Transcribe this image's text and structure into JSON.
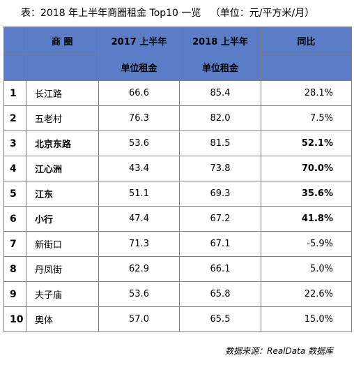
{
  "title": "表：2018 年上半年商圈租金 Top10 一览   （单位：元/平方米/月）",
  "table": {
    "headers": {
      "name": "商  圈",
      "y2017_top": "2017 上半年",
      "y2017_bottom": "单位租金",
      "y2018_top": "2018 上半年",
      "y2018_bottom": "单位租金",
      "yoy": "同比"
    },
    "rows": [
      {
        "rank": "1",
        "name": "长江路",
        "y2017": "66.6",
        "y2018": "85.4",
        "yoy": "28.1%",
        "bold": false
      },
      {
        "rank": "2",
        "name": "五老村",
        "y2017": "76.3",
        "y2018": "82.0",
        "yoy": "7.5%",
        "bold": false
      },
      {
        "rank": "3",
        "name": "北京东路",
        "y2017": "53.6",
        "y2018": "81.5",
        "yoy": "52.1%",
        "bold": true
      },
      {
        "rank": "4",
        "name": "江心洲",
        "y2017": "43.4",
        "y2018": "73.8",
        "yoy": "70.0%",
        "bold": true
      },
      {
        "rank": "5",
        "name": "江东",
        "y2017": "51.1",
        "y2018": "69.3",
        "yoy": "35.6%",
        "bold": true
      },
      {
        "rank": "6",
        "name": "小行",
        "y2017": "47.4",
        "y2018": "67.2",
        "yoy": "41.8%",
        "bold": true
      },
      {
        "rank": "7",
        "name": "新街口",
        "y2017": "71.3",
        "y2018": "67.1",
        "yoy": "-5.9%",
        "bold": false
      },
      {
        "rank": "8",
        "name": "丹凤街",
        "y2017": "62.9",
        "y2018": "66.1",
        "yoy": "5.0%",
        "bold": false
      },
      {
        "rank": "9",
        "name": "夫子庙",
        "y2017": "53.6",
        "y2018": "65.8",
        "yoy": "22.6%",
        "bold": false
      },
      {
        "rank": "10",
        "name": "奥体",
        "y2017": "57.0",
        "y2018": "65.5",
        "yoy": "15.0%",
        "bold": false
      }
    ]
  },
  "source": "数据来源：RealData 数据库",
  "colors": {
    "header_bg": "#5b7dc7",
    "border": "#7f7f7f"
  }
}
